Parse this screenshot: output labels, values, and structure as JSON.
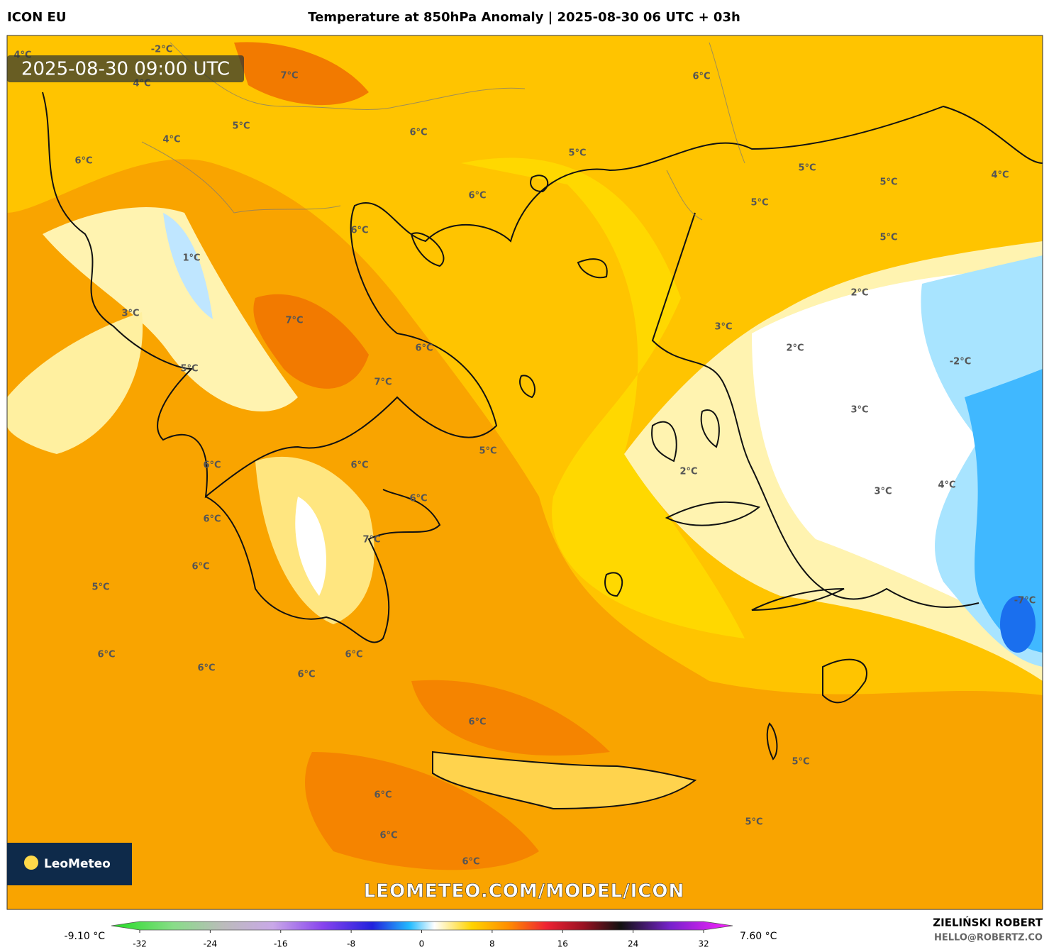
{
  "header": {
    "model": "ICON EU",
    "title": "Temperature at 850hPa Anomaly | 2025-08-30 06 UTC + 03h"
  },
  "timestamp": "2025-08-30 09:00 UTC",
  "map_labels": [
    "-2°C",
    "4°C",
    "7°C",
    "6°C",
    "4°C",
    "5°C",
    "6°C",
    "4°C",
    "5°C",
    "6°C",
    "5°C",
    "5°C",
    "4°C",
    "6°C",
    "5°C",
    "6°C",
    "5°C",
    "1°C",
    "2°C",
    "3°C",
    "7°C",
    "3°C",
    "6°C",
    "2°C",
    "-2°C",
    "5°C",
    "7°C",
    "3°C",
    "5°C",
    "6°C",
    "6°C",
    "2°C",
    "4°C",
    "3°C",
    "6°C",
    "6°C",
    "7°C",
    "6°C",
    "5°C",
    "-7°C",
    "6°C",
    "6°C",
    "6°C",
    "6°C",
    "6°C",
    "5°C",
    "6°C",
    "6°C",
    "5°C",
    "6°C"
  ],
  "logo": "LeoMeteo",
  "watermark": "LEOMETEO.COM/MODEL/ICON",
  "colorbar": {
    "min_label": "-9.10 °C",
    "max_label": "7.60 °C",
    "ticks": [
      -32,
      -24,
      -16,
      -8,
      0,
      8,
      16,
      24,
      32
    ]
  },
  "credits": {
    "author": "ZIELIŃSKI ROBERT",
    "email": "HELLO@ROBERTZ.CO"
  }
}
